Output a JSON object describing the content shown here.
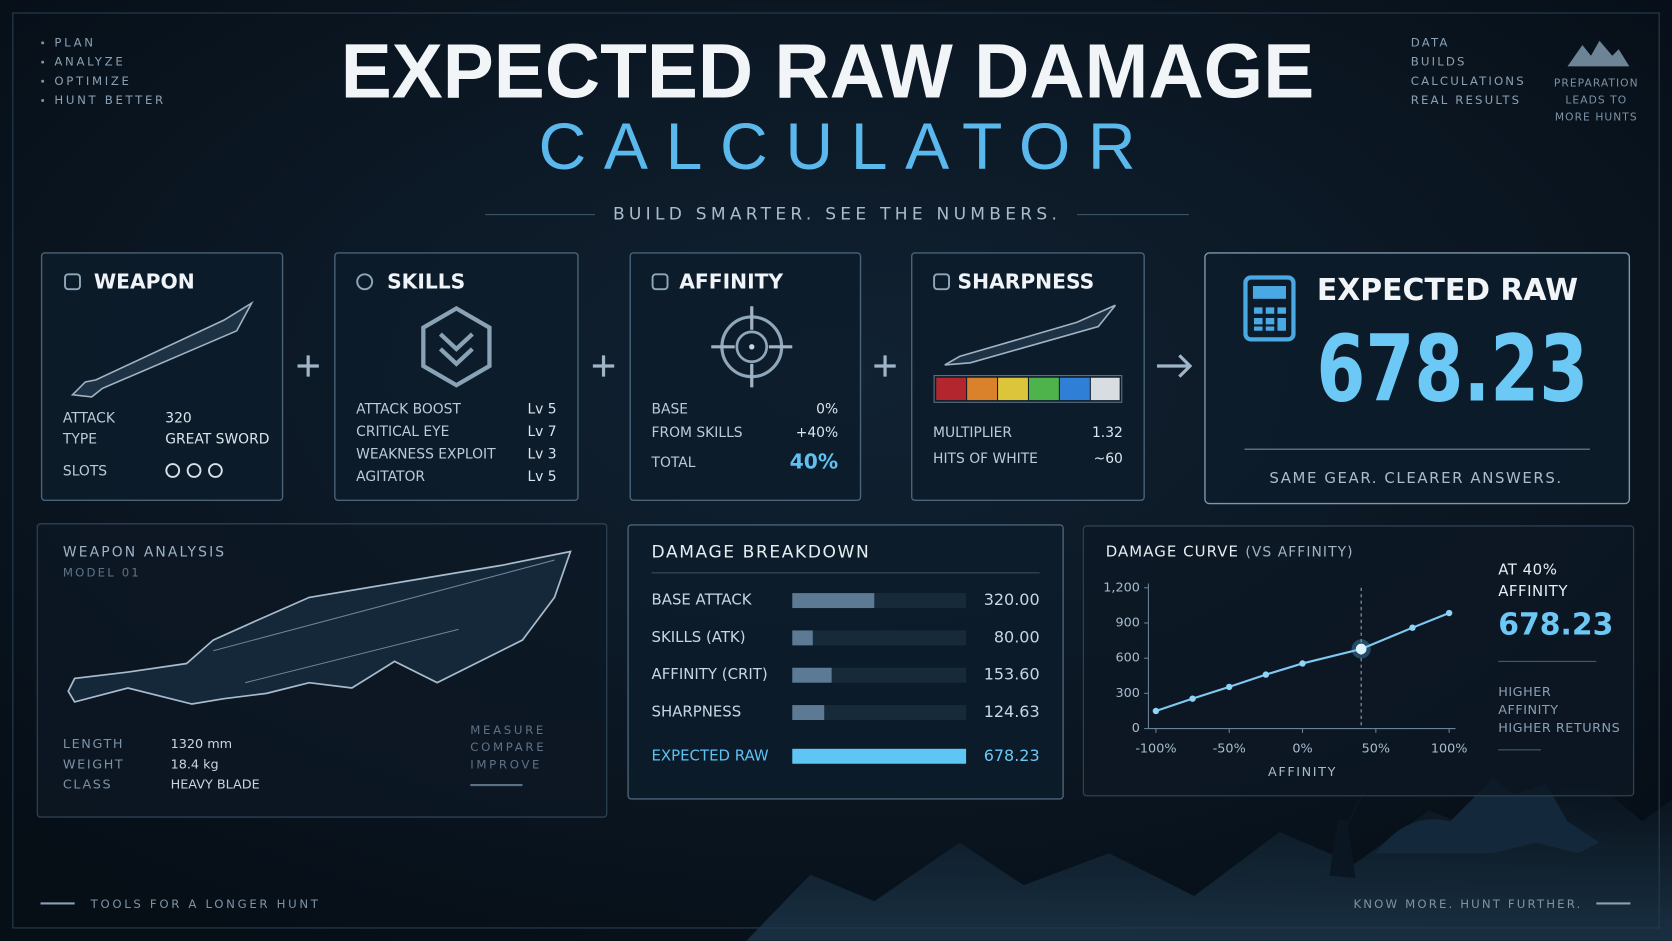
{
  "corner_left": [
    "PLAN",
    "ANALYZE",
    "OPTIMIZE",
    "HUNT BETTER"
  ],
  "corner_right": [
    "DATA",
    "BUILDS",
    "CALCULATIONS",
    "REAL RESULTS"
  ],
  "logo_caption": [
    "PREPARATION",
    "LEADS TO",
    "MORE HUNTS"
  ],
  "title": "EXPECTED RAW DAMAGE",
  "subtitle": "CALCULATOR",
  "tagline": "BUILD SMARTER. SEE THE NUMBERS.",
  "weapon": {
    "title": "WEAPON",
    "rows": [
      [
        "ATTACK",
        "320"
      ],
      [
        "TYPE",
        "GREAT SWORD"
      ]
    ],
    "slots_label": "SLOTS"
  },
  "skills": {
    "title": "SKILLS",
    "rows": [
      [
        "ATTACK BOOST",
        "Lv 5"
      ],
      [
        "CRITICAL EYE",
        "Lv 7"
      ],
      [
        "WEAKNESS EXPLOIT",
        "Lv 3"
      ],
      [
        "AGITATOR",
        "Lv 5"
      ]
    ]
  },
  "affinity": {
    "title": "AFFINITY",
    "rows": [
      [
        "BASE",
        "0%"
      ],
      [
        "FROM SKILLS",
        "+40%"
      ],
      [
        "TOTAL",
        "40%"
      ]
    ]
  },
  "sharpness": {
    "title": "SHARPNESS",
    "rows": [
      [
        "MULTIPLIER",
        "1.32"
      ],
      [
        "HITS OF WHITE",
        "~60"
      ]
    ]
  },
  "result": {
    "title": "EXPECTED RAW",
    "value": "678.23",
    "caption": "SAME GEAR. CLEARER ANSWERS."
  },
  "analysis": {
    "title": "WEAPON ANALYSIS",
    "model": "MODEL 01",
    "rows": [
      [
        "LENGTH",
        "1320 mm"
      ],
      [
        "WEIGHT",
        "18.4 kg"
      ],
      [
        "CLASS",
        "HEAVY BLADE"
      ]
    ],
    "steps": [
      "MEASURE",
      "COMPARE",
      "IMPROVE"
    ]
  },
  "breakdown": {
    "title": "DAMAGE BREAKDOWN",
    "categories": [
      "BASE ATTACK",
      "SKILLS (ATK)",
      "AFFINITY (CRIT)",
      "SHARPNESS",
      "EXPECTED RAW"
    ],
    "values": [
      320,
      80,
      153.6,
      124.63,
      678.23
    ],
    "value_labels": [
      "320.00",
      "80.00",
      "153.60",
      "124.63",
      "678.23"
    ]
  },
  "curve": {
    "type": "line",
    "title": "DAMAGE CURVE",
    "title_note": "(VS AFFINITY)",
    "x_label": "AFFINITY",
    "x": [
      -100,
      -75,
      -50,
      -25,
      0,
      40,
      75,
      100
    ],
    "values": [
      150,
      255,
      355,
      460,
      555,
      678.23,
      860,
      985
    ],
    "xlim": [
      -100,
      100
    ],
    "ylim": [
      0,
      1200
    ],
    "xticks": [
      {
        "value": -100,
        "label": "-100%"
      },
      {
        "value": -50,
        "label": "-50%"
      },
      {
        "value": 0,
        "label": "0%"
      },
      {
        "value": 50,
        "label": "50%"
      },
      {
        "value": 100,
        "label": "100%"
      }
    ],
    "yticks": [
      0,
      300,
      600,
      900,
      {
        "value": 1200,
        "label": "1,200"
      }
    ],
    "highlight_x": 40,
    "callout": {
      "label": [
        "AT 40%",
        "AFFINITY"
      ],
      "value": "678.23",
      "note": [
        "HIGHER",
        "AFFINITY",
        "HIGHER RETURNS"
      ]
    }
  },
  "footer_left": "TOOLS FOR A LONGER HUNT",
  "footer_right": "KNOW MORE. HUNT FURTHER."
}
